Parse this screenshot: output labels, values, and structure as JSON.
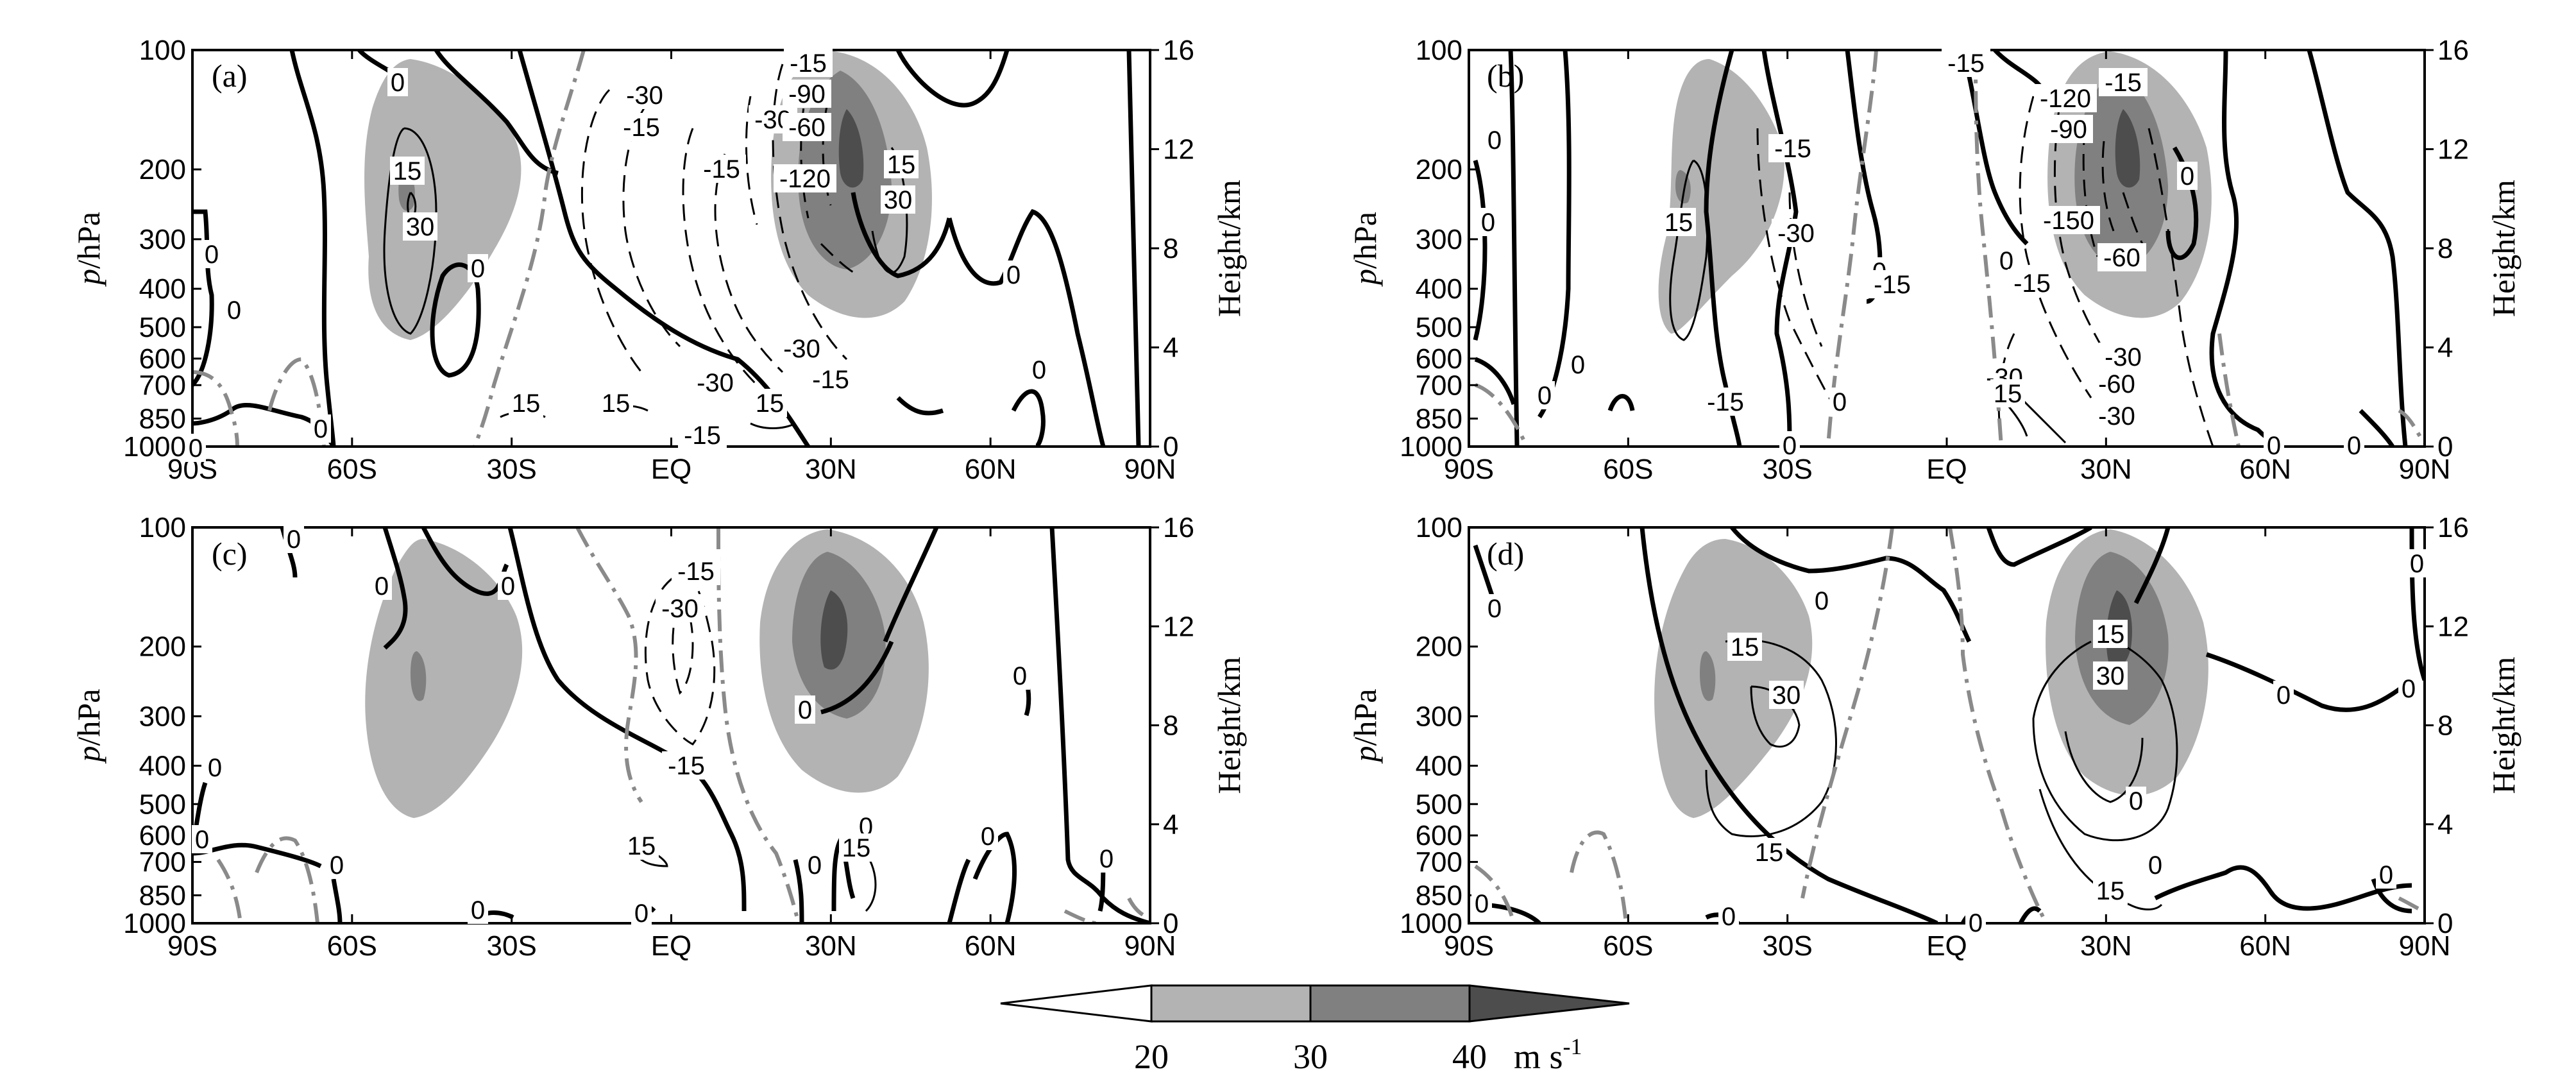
{
  "chart_data": [
    {
      "panel": "(a)",
      "type": "contour",
      "x_ticks": [
        "90S",
        "60S",
        "30S",
        "EQ",
        "30N",
        "60N",
        "90N"
      ],
      "y_left_label": "p/hPa",
      "y_left_ticks": [
        "100",
        "200",
        "300",
        "400",
        "500",
        "600",
        "700",
        "850",
        "1000"
      ],
      "y_right_label": "Height/km",
      "y_right_ticks": [
        "0",
        "4",
        "8",
        "12",
        "16"
      ],
      "contour_labels": [
        "0",
        "0",
        "0",
        "0",
        "0",
        "0",
        "0",
        "0",
        "15",
        "30",
        "15",
        "15",
        "15",
        "15",
        "30",
        "-15",
        "-30",
        "-15",
        "-30",
        "-60",
        "-90",
        "-120",
        "-15",
        "-30",
        "-30",
        "-15",
        "-15"
      ]
    },
    {
      "panel": "(b)",
      "type": "contour",
      "x_ticks": [
        "90S",
        "60S",
        "30S",
        "EQ",
        "30N",
        "60N",
        "90N"
      ],
      "y_left_label": "p/hPa",
      "y_left_ticks": [
        "100",
        "200",
        "300",
        "400",
        "500",
        "600",
        "700",
        "850",
        "1000"
      ],
      "y_right_label": "Height/km",
      "y_right_ticks": [
        "0",
        "4",
        "8",
        "12",
        "16"
      ],
      "contour_labels": [
        "0",
        "0",
        "0",
        "0",
        "0",
        "0",
        "0",
        "0",
        "0",
        "0",
        "0",
        "15",
        "-15",
        "-30",
        "-15",
        "-15",
        "-30",
        "-60",
        "-90",
        "-120",
        "-150",
        "-15",
        "-30",
        "-60",
        "-30",
        "-15",
        "-15",
        "15"
      ]
    },
    {
      "panel": "(c)",
      "type": "contour",
      "x_ticks": [
        "90S",
        "60S",
        "30S",
        "EQ",
        "30N",
        "60N",
        "90N"
      ],
      "y_left_label": "p/hPa",
      "y_left_ticks": [
        "100",
        "200",
        "300",
        "400",
        "500",
        "600",
        "700",
        "850",
        "1000"
      ],
      "y_right_label": "Height/km",
      "y_right_ticks": [
        "0",
        "4",
        "8",
        "12",
        "16"
      ],
      "contour_labels": [
        "0",
        "0",
        "0",
        "0",
        "0",
        "0",
        "0",
        "0",
        "0",
        "0",
        "0",
        "0",
        "0",
        "0",
        "15",
        "15",
        "-15",
        "-30",
        "-15"
      ]
    },
    {
      "panel": "(d)",
      "type": "contour",
      "x_ticks": [
        "90S",
        "60S",
        "30S",
        "EQ",
        "30N",
        "60N",
        "90N"
      ],
      "y_left_label": "p/hPa",
      "y_left_ticks": [
        "100",
        "200",
        "300",
        "400",
        "500",
        "600",
        "700",
        "850",
        "1000"
      ],
      "y_right_label": "Height/km",
      "y_right_ticks": [
        "0",
        "4",
        "8",
        "12",
        "16"
      ],
      "contour_labels": [
        "0",
        "0",
        "0",
        "0",
        "0",
        "0",
        "0",
        "0",
        "0",
        "0",
        "0",
        "15",
        "30",
        "15",
        "15",
        "30",
        "15"
      ]
    }
  ],
  "colorbar": {
    "values": [
      "20",
      "30",
      "40"
    ],
    "unit": "m s",
    "unit_sup": "-1",
    "colors": [
      "#ffffff",
      "#b3b3b3",
      "#808080",
      "#4d4d4d"
    ]
  }
}
